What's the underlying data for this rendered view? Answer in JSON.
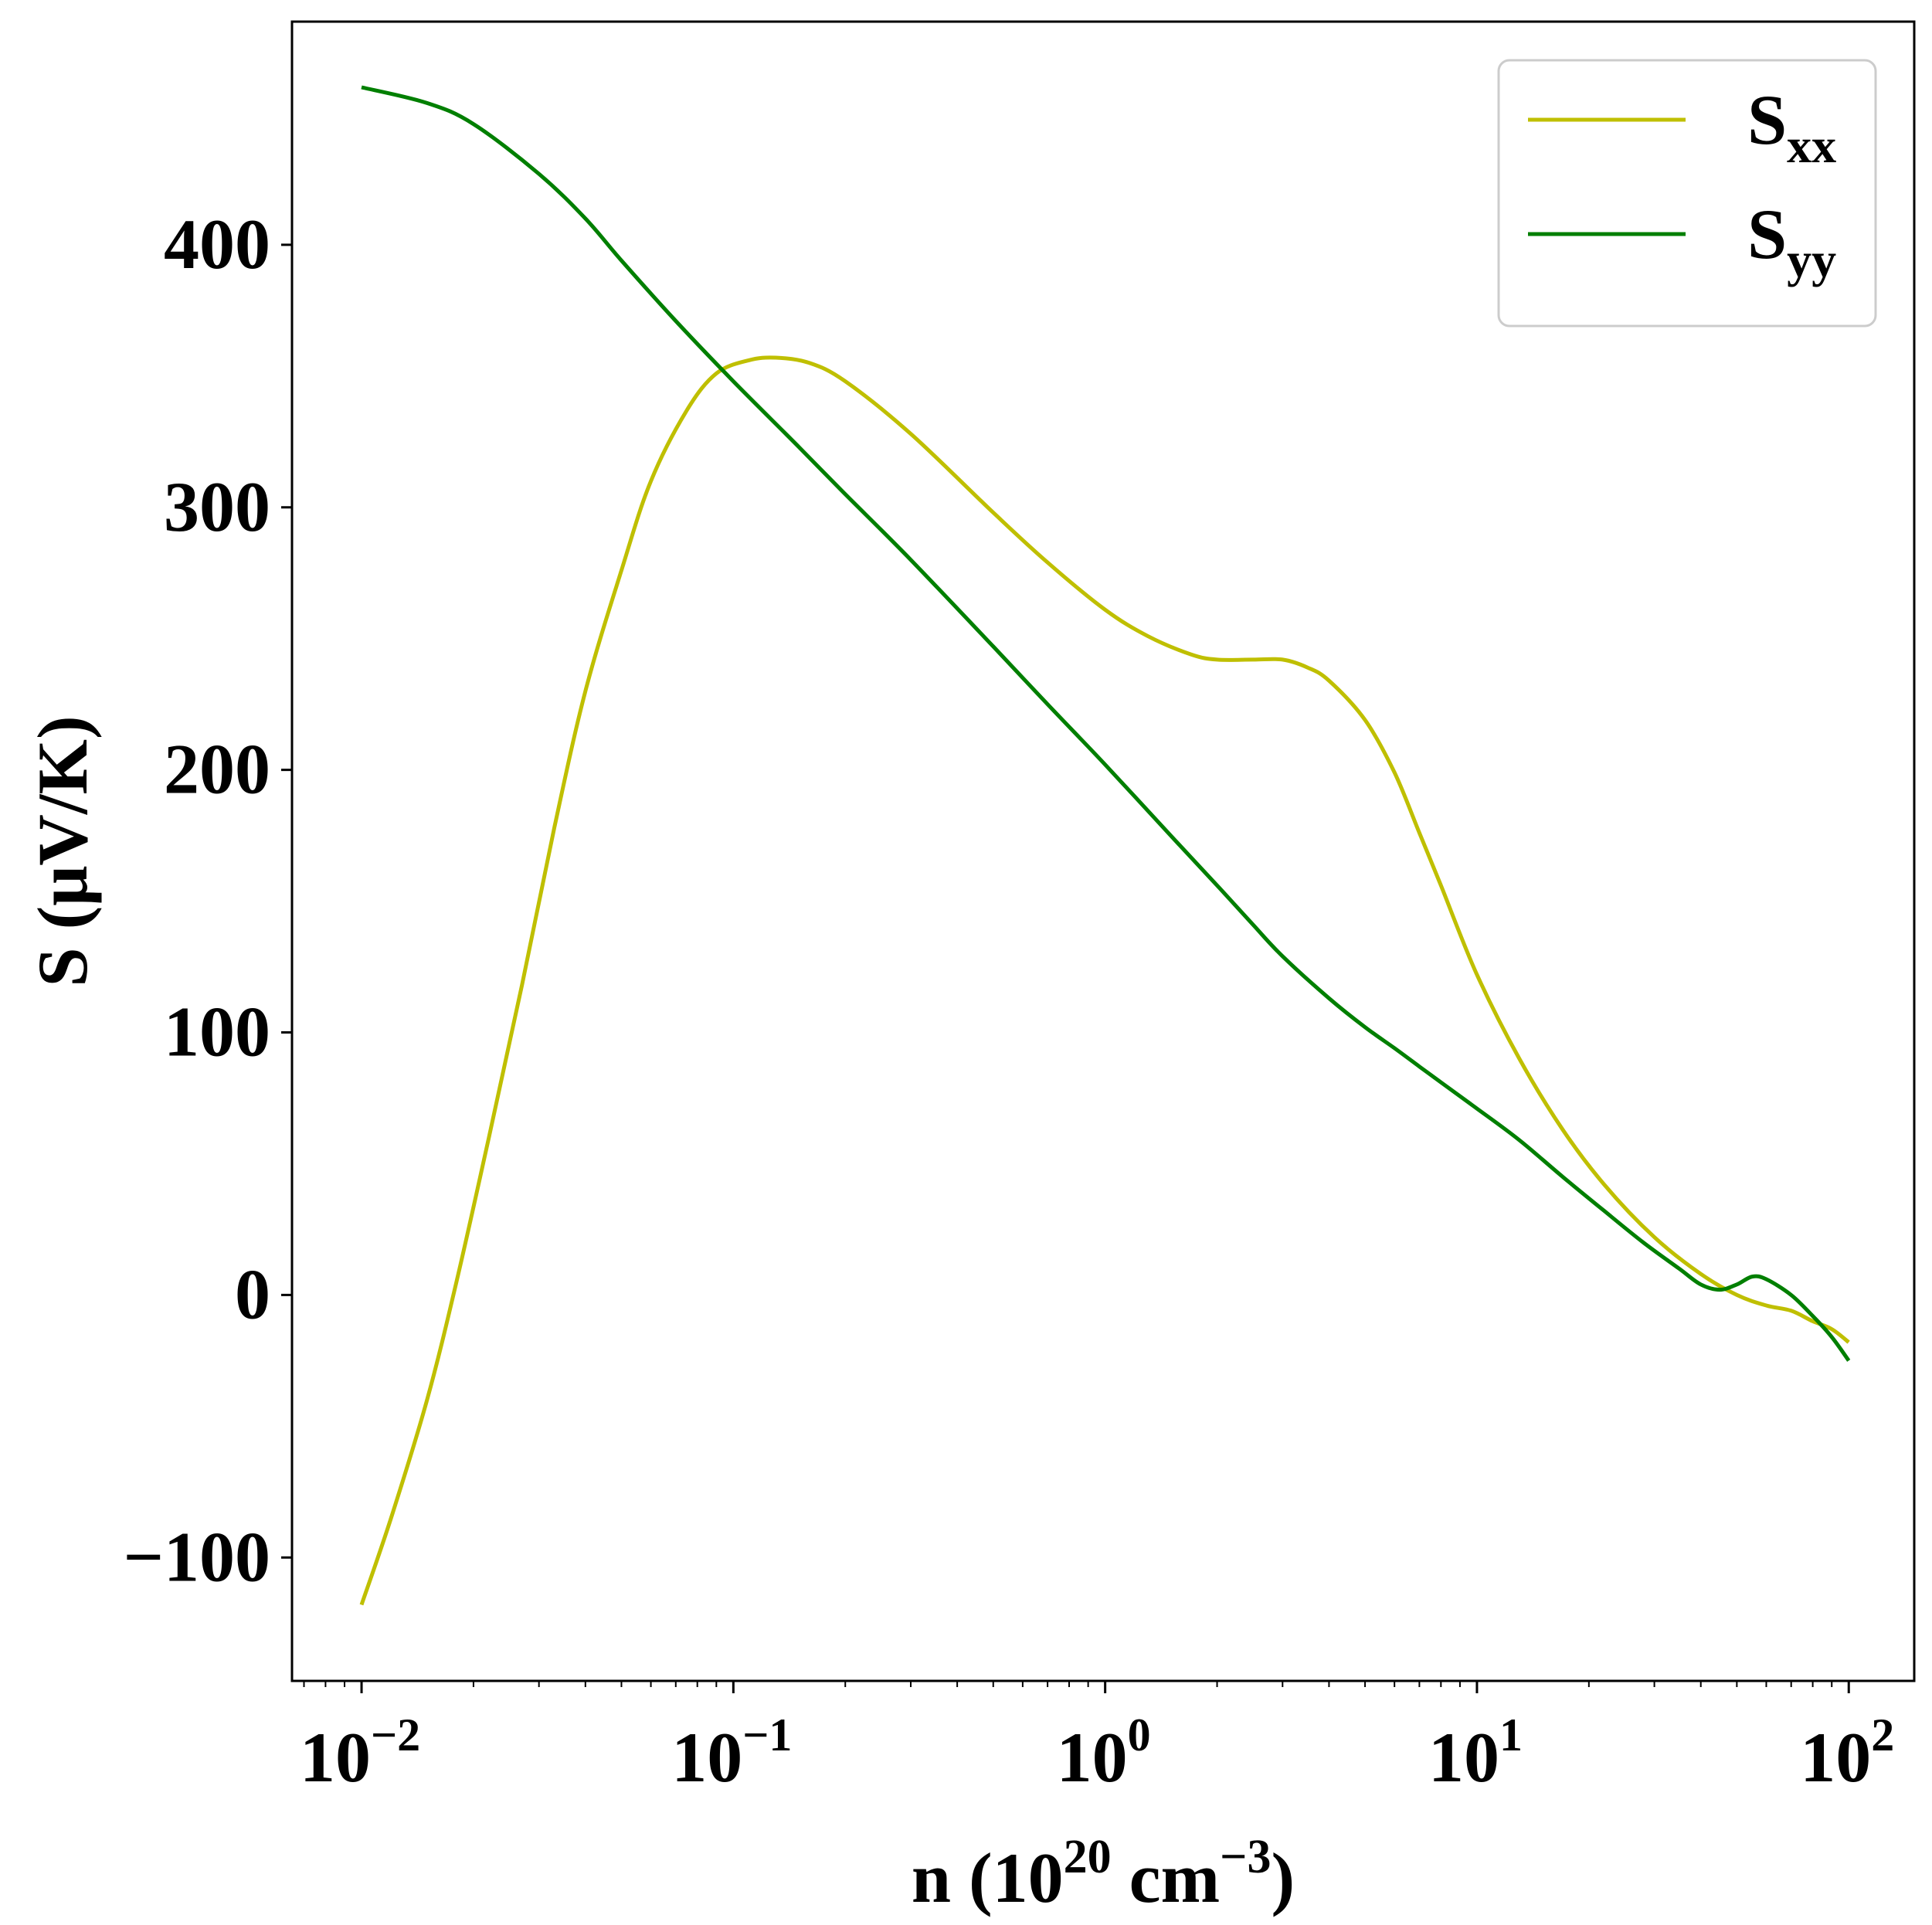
{
  "chart_data": {
    "type": "line",
    "xlabel": {
      "prefix": "n (10",
      "exp": "20",
      "mid": " cm",
      "unit_exp": "−3",
      "suffix": ")"
    },
    "ylabel": "S (μV/K)",
    "x_scale": "log",
    "xlim": [
      0.0065,
      150
    ],
    "ylim": [
      -147,
      485
    ],
    "grid": false,
    "legend_position": "top-right",
    "x_ticks": [
      {
        "value": 0.01,
        "base": "10",
        "exp": "−2"
      },
      {
        "value": 0.1,
        "base": "10",
        "exp": "−1"
      },
      {
        "value": 1,
        "base": "10",
        "exp": "0"
      },
      {
        "value": 10,
        "base": "10",
        "exp": "1"
      },
      {
        "value": 100,
        "base": "10",
        "exp": "2"
      }
    ],
    "y_ticks": [
      {
        "value": -100,
        "label": "−100"
      },
      {
        "value": 0,
        "label": "0"
      },
      {
        "value": 100,
        "label": "100"
      },
      {
        "value": 200,
        "label": "200"
      },
      {
        "value": 300,
        "label": "300"
      },
      {
        "value": 400,
        "label": "400"
      }
    ],
    "series": [
      {
        "name": "S",
        "name_sub": "xx",
        "color": "#bfbf00",
        "points": [
          [
            0.01,
            -118
          ],
          [
            0.012,
            -85
          ],
          [
            0.015,
            -40
          ],
          [
            0.018,
            5
          ],
          [
            0.022,
            60
          ],
          [
            0.027,
            118
          ],
          [
            0.033,
            178
          ],
          [
            0.04,
            230
          ],
          [
            0.05,
            276
          ],
          [
            0.06,
            310
          ],
          [
            0.075,
            337
          ],
          [
            0.09,
            351
          ],
          [
            0.11,
            356
          ],
          [
            0.13,
            357
          ],
          [
            0.16,
            355
          ],
          [
            0.2,
            348
          ],
          [
            0.3,
            328
          ],
          [
            0.5,
            298
          ],
          [
            0.7,
            279
          ],
          [
            1.0,
            261
          ],
          [
            1.3,
            251
          ],
          [
            1.7,
            244
          ],
          [
            2.0,
            242
          ],
          [
            2.5,
            242
          ],
          [
            3.0,
            242
          ],
          [
            3.5,
            239
          ],
          [
            4.0,
            234
          ],
          [
            5.0,
            219
          ],
          [
            6.0,
            199
          ],
          [
            7.0,
            176
          ],
          [
            8.0,
            156
          ],
          [
            10.0,
            122
          ],
          [
            13.0,
            90
          ],
          [
            17.0,
            63
          ],
          [
            22.0,
            42
          ],
          [
            30.0,
            22
          ],
          [
            40.0,
            8
          ],
          [
            50.0,
            0
          ],
          [
            60.0,
            -4
          ],
          [
            70.0,
            -6
          ],
          [
            80.0,
            -10
          ],
          [
            90.0,
            -13
          ],
          [
            100.0,
            -18
          ]
        ]
      },
      {
        "name": "S",
        "name_sub": "yy",
        "color": "#007f00",
        "points": [
          [
            0.01,
            460
          ],
          [
            0.015,
            454
          ],
          [
            0.02,
            446
          ],
          [
            0.03,
            427
          ],
          [
            0.04,
            410
          ],
          [
            0.05,
            394
          ],
          [
            0.07,
            371
          ],
          [
            0.1,
            348
          ],
          [
            0.15,
            323
          ],
          [
            0.2,
            305
          ],
          [
            0.3,
            280
          ],
          [
            0.5,
            247
          ],
          [
            0.7,
            225
          ],
          [
            1.0,
            202
          ],
          [
            1.5,
            175
          ],
          [
            2.0,
            156
          ],
          [
            2.5,
            141
          ],
          [
            3.0,
            129
          ],
          [
            4.0,
            113
          ],
          [
            5.0,
            102
          ],
          [
            6.0,
            94
          ],
          [
            7.0,
            87
          ],
          [
            8.0,
            81
          ],
          [
            10.0,
            71
          ],
          [
            13.0,
            59
          ],
          [
            17.0,
            45
          ],
          [
            22.0,
            32
          ],
          [
            28.0,
            20
          ],
          [
            35.0,
            10
          ],
          [
            40.0,
            4
          ],
          [
            45.0,
            2
          ],
          [
            50.0,
            4
          ],
          [
            55.0,
            7
          ],
          [
            60.0,
            6
          ],
          [
            70.0,
            0
          ],
          [
            80.0,
            -8
          ],
          [
            90.0,
            -16
          ],
          [
            100.0,
            -25
          ]
        ]
      }
    ]
  }
}
